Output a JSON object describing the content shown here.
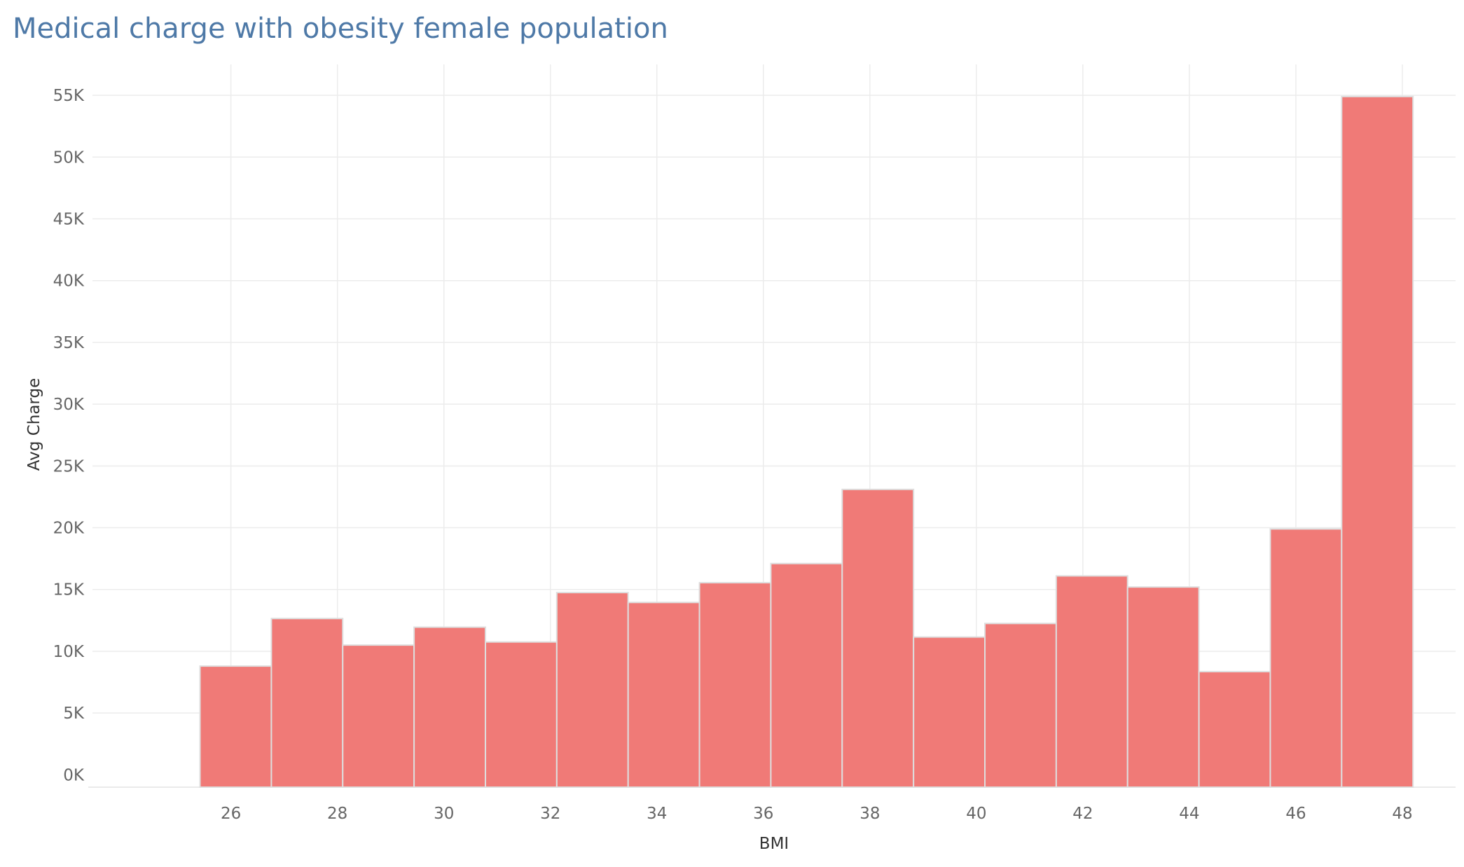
{
  "chart_data": {
    "type": "bar",
    "title": "Medical charge with obesity female population",
    "xlabel": "BMI",
    "ylabel": "Avg Charge",
    "bin_width": 1.34,
    "bins": [
      {
        "start": 25.42,
        "value": 8800
      },
      {
        "start": 26.76,
        "value": 12650
      },
      {
        "start": 28.1,
        "value": 10500
      },
      {
        "start": 29.44,
        "value": 11950
      },
      {
        "start": 30.78,
        "value": 10750
      },
      {
        "start": 32.12,
        "value": 14750
      },
      {
        "start": 33.46,
        "value": 13950
      },
      {
        "start": 34.8,
        "value": 15550
      },
      {
        "start": 36.14,
        "value": 17100
      },
      {
        "start": 37.48,
        "value": 23100
      },
      {
        "start": 38.82,
        "value": 11150
      },
      {
        "start": 40.16,
        "value": 12250
      },
      {
        "start": 41.5,
        "value": 16100
      },
      {
        "start": 42.84,
        "value": 15200
      },
      {
        "start": 44.18,
        "value": 8350
      },
      {
        "start": 45.52,
        "value": 19900
      },
      {
        "start": 46.86,
        "value": 54900
      }
    ],
    "xlim": [
      23.4,
      49.0
    ],
    "ylim": [
      -1000,
      57500
    ],
    "x_ticks": [
      26,
      28,
      30,
      32,
      34,
      36,
      38,
      40,
      42,
      44,
      46,
      48
    ],
    "x_tick_labels": [
      "26",
      "28",
      "30",
      "32",
      "34",
      "36",
      "38",
      "40",
      "42",
      "44",
      "46",
      "48"
    ],
    "y_ticks": [
      0,
      5000,
      10000,
      15000,
      20000,
      25000,
      30000,
      35000,
      40000,
      45000,
      50000,
      55000
    ],
    "y_tick_labels": [
      "0K",
      "5K",
      "10K",
      "15K",
      "20K",
      "25K",
      "30K",
      "35K",
      "40K",
      "45K",
      "50K",
      "55K"
    ],
    "bar_color": "#f07a77",
    "bar_stroke": "#dedede",
    "grid": true,
    "grid_color": "#ececec",
    "title_color": "#4e79a7"
  }
}
